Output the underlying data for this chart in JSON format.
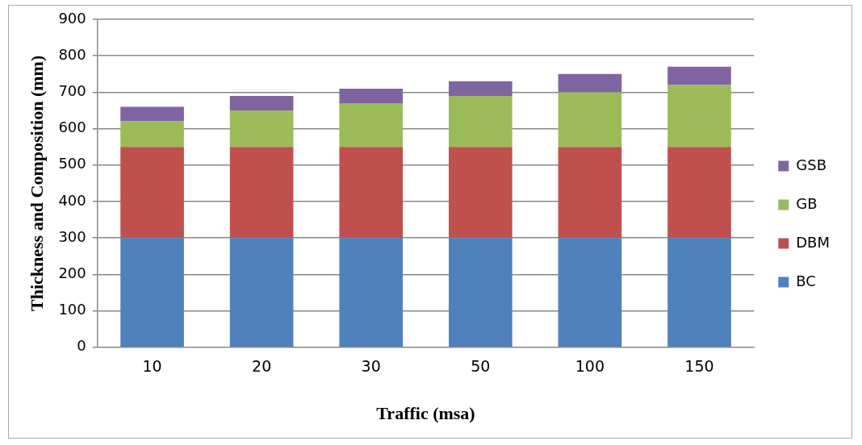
{
  "chart_data": {
    "type": "bar",
    "stacked": true,
    "xlabel": "Traffic (msa)",
    "ylabel": "Thickness and Composition (mm)",
    "categories": [
      "10",
      "20",
      "30",
      "50",
      "100",
      "150"
    ],
    "series": [
      {
        "name": "BC",
        "color": "#4f81bd",
        "values": [
          300,
          300,
          300,
          300,
          300,
          300
        ]
      },
      {
        "name": "DBM",
        "color": "#c0504d",
        "values": [
          250,
          250,
          250,
          250,
          250,
          250
        ]
      },
      {
        "name": "GB",
        "color": "#9bbb59",
        "values": [
          70,
          100,
          120,
          140,
          150,
          170
        ]
      },
      {
        "name": "GSB",
        "color": "#8064a2",
        "values": [
          40,
          40,
          40,
          40,
          50,
          50
        ]
      }
    ],
    "ylim": [
      0,
      900
    ],
    "yticks": [
      0,
      100,
      200,
      300,
      400,
      500,
      600,
      700,
      800,
      900
    ],
    "grid": "y",
    "legend": "right"
  }
}
